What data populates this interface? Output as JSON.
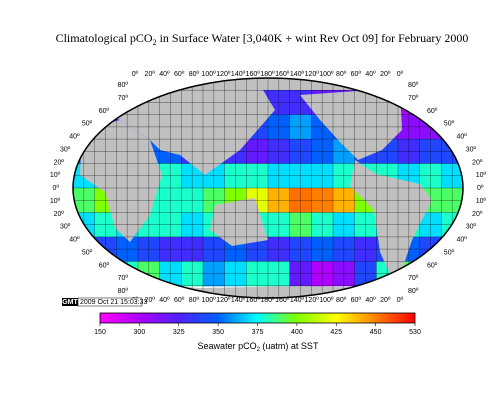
{
  "title": {
    "before": "Climatological pCO",
    "sub": "2",
    "after": " in Surface Water [3,040K + wint Rev Oct 09] for February 2000"
  },
  "lon_labels": [
    "0º",
    "20º",
    "40º",
    "60º",
    "80º",
    "100º",
    "120º",
    "140º",
    "160º",
    "180º",
    "160º",
    "140º",
    "120º",
    "100º",
    "80º",
    "60º",
    "40º",
    "20º",
    "0º"
  ],
  "lat_labels": [
    "80º",
    "70º",
    "60º",
    "50º",
    "40º",
    "30º",
    "20º",
    "10º",
    "0º",
    "10º",
    "20º",
    "30º",
    "40º",
    "50º",
    "60º",
    "70º",
    "80º"
  ],
  "stamp": {
    "logo": "GMT",
    "time": "2009 Oct 21 15:03:33"
  },
  "colorbar": {
    "ticks": [
      150,
      300,
      325,
      350,
      375,
      400,
      425,
      450,
      530
    ],
    "palette": [
      "#ff00ff",
      "#b000ff",
      "#5020ff",
      "#0060ff",
      "#00ffff",
      "#80ff00",
      "#ffff00",
      "#ff8000",
      "#ff0000"
    ],
    "label": {
      "before": "Seawater  pCO",
      "sub": "2",
      "after": " (uatm) at SST"
    }
  },
  "grid": {
    "rows": [
      [
        300,
        300,
        300,
        310,
        320,
        320,
        320,
        330,
        330,
        330,
        330,
        320,
        320,
        310,
        300,
        300,
        300,
        300
      ],
      [
        320,
        330,
        340,
        350,
        350,
        350,
        360,
        350,
        340,
        350,
        360,
        350,
        340,
        330,
        320,
        310,
        310,
        320
      ],
      [
        350,
        340,
        340,
        350,
        350,
        330,
        340,
        330,
        320,
        330,
        340,
        350,
        360,
        340,
        340,
        330,
        340,
        340
      ],
      [
        370,
        370,
        380,
        380,
        380,
        370,
        370,
        380,
        380,
        370,
        370,
        370,
        380,
        380,
        380,
        370,
        380,
        370
      ],
      [
        390,
        400,
        390,
        380,
        380,
        380,
        390,
        400,
        420,
        440,
        460,
        450,
        440,
        400,
        390,
        380,
        390,
        390
      ],
      [
        370,
        380,
        370,
        380,
        380,
        370,
        380,
        370,
        380,
        380,
        390,
        380,
        370,
        380,
        370,
        380,
        370,
        380
      ],
      [
        340,
        340,
        350,
        340,
        330,
        330,
        340,
        350,
        340,
        330,
        340,
        350,
        340,
        330,
        340,
        350,
        340,
        340
      ],
      [
        380,
        390,
        380,
        390,
        370,
        380,
        360,
        370,
        380,
        380,
        320,
        300,
        310,
        340,
        380,
        390,
        380,
        390
      ]
    ]
  }
}
